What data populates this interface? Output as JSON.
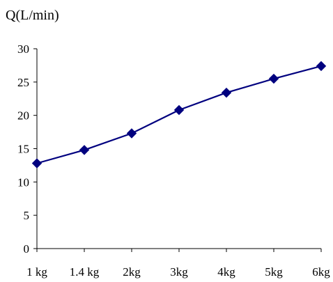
{
  "chart_data": {
    "type": "line",
    "title": "",
    "xlabel": "",
    "ylabel": "Q(L/min)",
    "categories": [
      "1 kg",
      "1.4 kg",
      "2kg",
      "3kg",
      "4kg",
      "5kg",
      "6kg"
    ],
    "series": [
      {
        "values": [
          12.8,
          14.8,
          17.3,
          20.8,
          23.4,
          25.5,
          27.4
        ],
        "color": "#00007f",
        "marker": "diamond"
      }
    ],
    "ylim": [
      0,
      30
    ],
    "yticks": [
      0,
      5,
      10,
      15,
      20,
      25,
      30
    ],
    "grid": false,
    "legend": "none"
  }
}
